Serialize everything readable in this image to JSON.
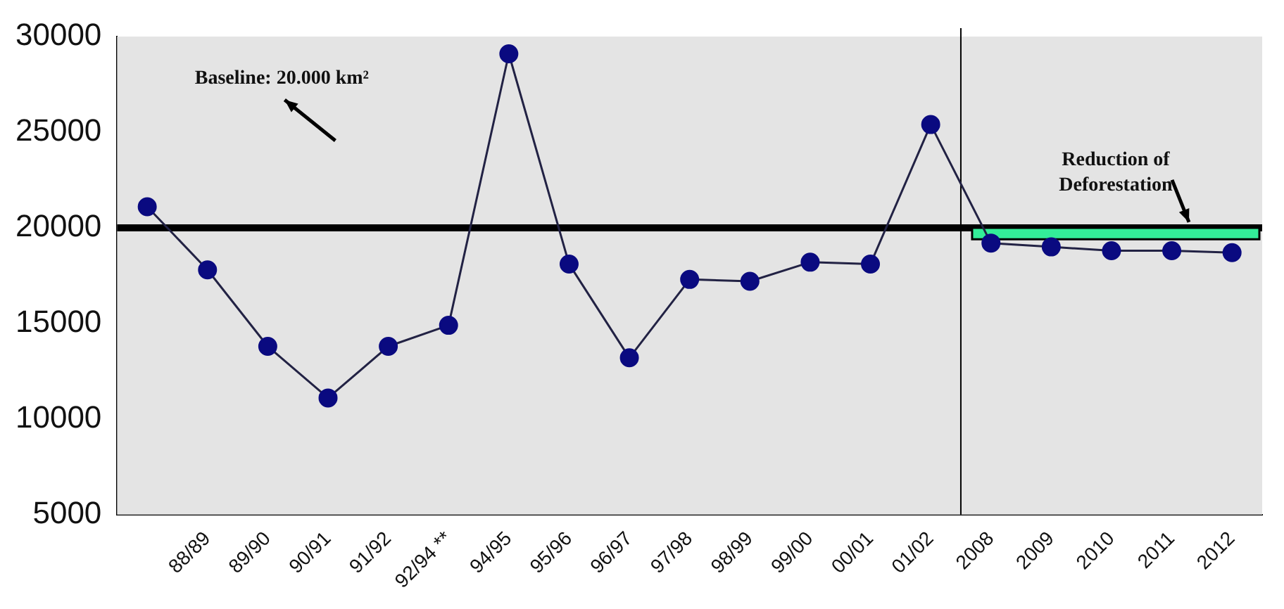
{
  "chart_data": {
    "type": "line",
    "categories": [
      null,
      "88/89",
      "89/90",
      "90/91",
      "91/92",
      "92/94 **",
      "94/95",
      "95/96",
      "96/97",
      "97/98",
      "98/99",
      "99/00",
      "00/01",
      "01/02",
      "2008",
      "2009",
      "2010",
      "2011",
      "2012"
    ],
    "series": [
      {
        "color": "#0a0a80",
        "values": [
          21100,
          17800,
          13800,
          11100,
          13800,
          14900,
          29100,
          18100,
          13200,
          17300,
          17200,
          18200,
          18100,
          25400,
          19200,
          19000,
          18800,
          18800,
          18700
        ]
      }
    ],
    "ylim": [
      5000,
      30000
    ],
    "yticks": [
      5000,
      10000,
      15000,
      20000,
      25000,
      30000
    ],
    "grid": false,
    "legend": false,
    "marker": "circle",
    "line_style": "solid",
    "ref_lines": [
      {
        "axis": "y",
        "value": 20000,
        "label": "Baseline: 20.000 km²",
        "color": "#000000"
      },
      {
        "axis": "x",
        "value": "2008",
        "color": "#000000"
      }
    ],
    "bands": [
      {
        "axis": "y",
        "from": 19400,
        "to": 20000,
        "label": "Reduction of Deforestation",
        "color": "#33ee99"
      }
    ]
  }
}
